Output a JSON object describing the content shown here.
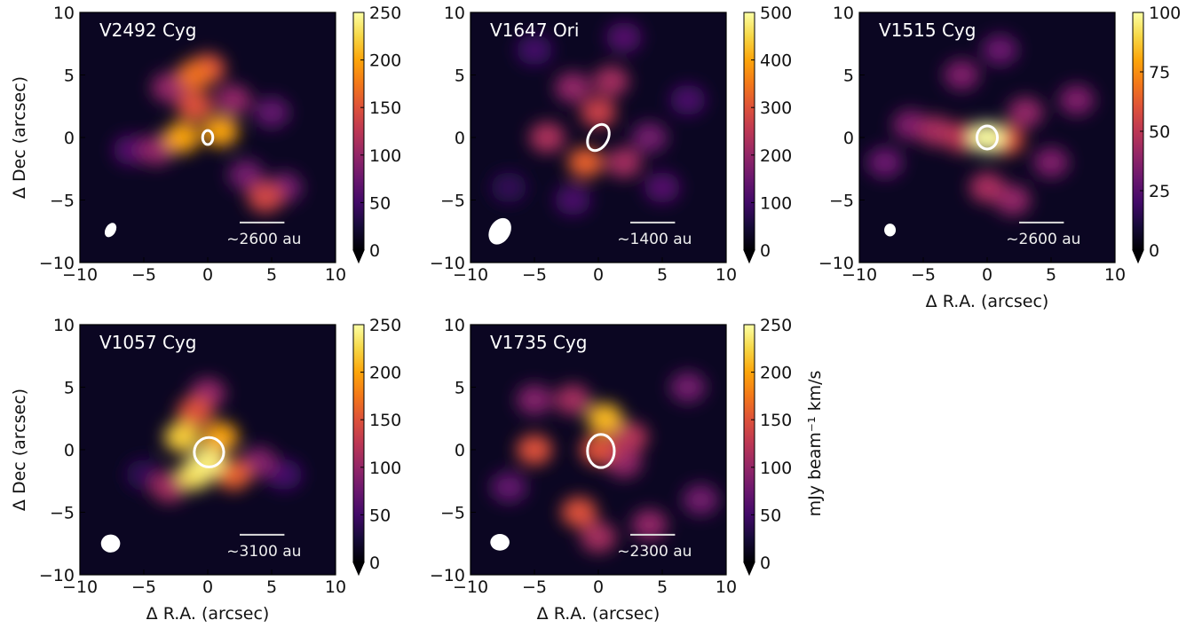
{
  "chart_data": [
    {
      "type": "heatmap",
      "title": "V2492 Cyg",
      "xlim": [
        -10,
        10
      ],
      "ylim": [
        -10,
        10
      ],
      "xticks": [
        {
          "value": -10,
          "label": "−10"
        },
        {
          "value": -5,
          "label": "−5"
        },
        0,
        5,
        10
      ],
      "yticks": [
        {
          "value": -10,
          "label": "−10"
        },
        {
          "value": -5,
          "label": "−5"
        },
        0,
        5,
        10
      ],
      "ylabel": "Δ Dec (arcsec)",
      "scale_label": "~2600 au",
      "colorbar": {
        "lim": [
          0,
          250
        ],
        "ticks": [
          0,
          50,
          100,
          150,
          200,
          250
        ]
      },
      "emission": {
        "x": [
          -6,
          5,
          3,
          6,
          -4,
          2,
          -3,
          4.5,
          -1,
          0,
          -1,
          -2,
          1
        ],
        "y": [
          -1,
          2,
          -3,
          -4,
          -1,
          3,
          4,
          -4.8,
          2.5,
          5.5,
          5,
          0,
          0.5
        ],
        "values": [
          60,
          70,
          80,
          80,
          100,
          100,
          100,
          140,
          150,
          150,
          170,
          200,
          200
        ]
      }
    },
    {
      "type": "heatmap",
      "title": "V1647 Ori",
      "xlim": [
        -10,
        10
      ],
      "ylim": [
        -10,
        10
      ],
      "xticks": [
        {
          "value": -10,
          "label": "−10"
        },
        {
          "value": -5,
          "label": "−5"
        },
        0,
        5,
        10
      ],
      "yticks": [
        {
          "value": -10,
          "label": "−10"
        },
        {
          "value": -5,
          "label": "−5"
        },
        0,
        5,
        10
      ],
      "scale_label": "~1400 au",
      "colorbar": {
        "lim": [
          0,
          500
        ],
        "ticks": [
          0,
          100,
          200,
          300,
          400,
          500
        ]
      },
      "emission": {
        "x": [
          -7,
          -5,
          7,
          -2,
          2,
          5,
          4,
          -2,
          2,
          1,
          -4,
          0,
          -1
        ],
        "y": [
          -4,
          7,
          3,
          -5,
          8,
          -4,
          0,
          4,
          -2,
          4.5,
          0,
          2,
          -2
        ],
        "values": [
          80,
          100,
          110,
          110,
          120,
          120,
          160,
          200,
          220,
          220,
          230,
          270,
          320
        ]
      }
    },
    {
      "type": "heatmap",
      "title": "V1515 Cyg",
      "xlim": [
        -10,
        10
      ],
      "ylim": [
        -10,
        10
      ],
      "xticks": [
        {
          "value": -10,
          "label": "−10"
        },
        {
          "value": -5,
          "label": "−5"
        },
        0,
        5,
        10
      ],
      "yticks": [
        {
          "value": -10,
          "label": "−10"
        },
        {
          "value": -5,
          "label": "−5"
        },
        0,
        5,
        10
      ],
      "xlabel": "Δ R.A. (arcsec)",
      "scale_label": "~2600 au",
      "colorbar": {
        "lim": [
          0,
          100
        ],
        "ticks": [
          0,
          25,
          50,
          75,
          100
        ]
      },
      "emission": {
        "x": [
          -8,
          1,
          -6,
          -2,
          5,
          7,
          3,
          2,
          -4,
          0,
          -2,
          1.5,
          0
        ],
        "y": [
          -2,
          7,
          1,
          5,
          -2,
          3,
          2,
          -5,
          0.5,
          -4,
          0,
          -0.2,
          0
        ],
        "values": [
          30,
          30,
          35,
          35,
          35,
          35,
          40,
          40,
          45,
          45,
          50,
          60,
          100
        ]
      }
    },
    {
      "type": "heatmap",
      "title": "V1057 Cyg",
      "xlim": [
        -10,
        10
      ],
      "ylim": [
        -10,
        10
      ],
      "xticks": [
        {
          "value": -10,
          "label": "−10"
        },
        {
          "value": -5,
          "label": "−5"
        },
        0,
        5,
        10
      ],
      "yticks": [
        {
          "value": -10,
          "label": "−10"
        },
        {
          "value": -5,
          "label": "−5"
        },
        0,
        5,
        10
      ],
      "xlabel": "Δ R.A. (arcsec)",
      "ylabel": "Δ Dec (arcsec)",
      "scale_label": "~3100 au",
      "colorbar": {
        "lim": [
          0,
          250
        ],
        "ticks": [
          0,
          50,
          100,
          150,
          200,
          250
        ]
      },
      "emission": {
        "x": [
          -5,
          6,
          4,
          0,
          -3,
          -1,
          2,
          1,
          -2,
          -1,
          0
        ],
        "y": [
          -2,
          -2,
          -1,
          4.5,
          -3,
          3,
          -2,
          1,
          1,
          -2,
          -1
        ],
        "values": [
          40,
          50,
          90,
          100,
          110,
          150,
          160,
          200,
          220,
          230,
          240
        ]
      }
    },
    {
      "type": "heatmap",
      "title": "V1735 Cyg",
      "xlim": [
        -10,
        10
      ],
      "ylim": [
        -10,
        10
      ],
      "xticks": [
        {
          "value": -10,
          "label": "−10"
        },
        {
          "value": -5,
          "label": "−5"
        },
        0,
        5,
        10
      ],
      "yticks": [
        {
          "value": -10,
          "label": "−10"
        },
        {
          "value": -5,
          "label": "−5"
        },
        0,
        5,
        10
      ],
      "xlabel": "Δ R.A. (arcsec)",
      "scale_label": "~2300 au",
      "colorbar": {
        "lim": [
          0,
          250
        ],
        "ticks": [
          0,
          50,
          100,
          150,
          200,
          250
        ],
        "label": "mJy beam⁻¹ km/s"
      },
      "emission": {
        "x": [
          -7,
          7,
          8,
          -5,
          2,
          4,
          -2,
          0,
          2.5,
          0,
          -5,
          -1.5,
          0.5
        ],
        "y": [
          -3,
          5,
          -4,
          4,
          -1,
          -6,
          4,
          -7,
          1,
          0,
          0,
          -5,
          2.5
        ],
        "values": [
          70,
          80,
          80,
          90,
          100,
          100,
          110,
          110,
          120,
          150,
          150,
          150,
          210
        ]
      }
    }
  ]
}
